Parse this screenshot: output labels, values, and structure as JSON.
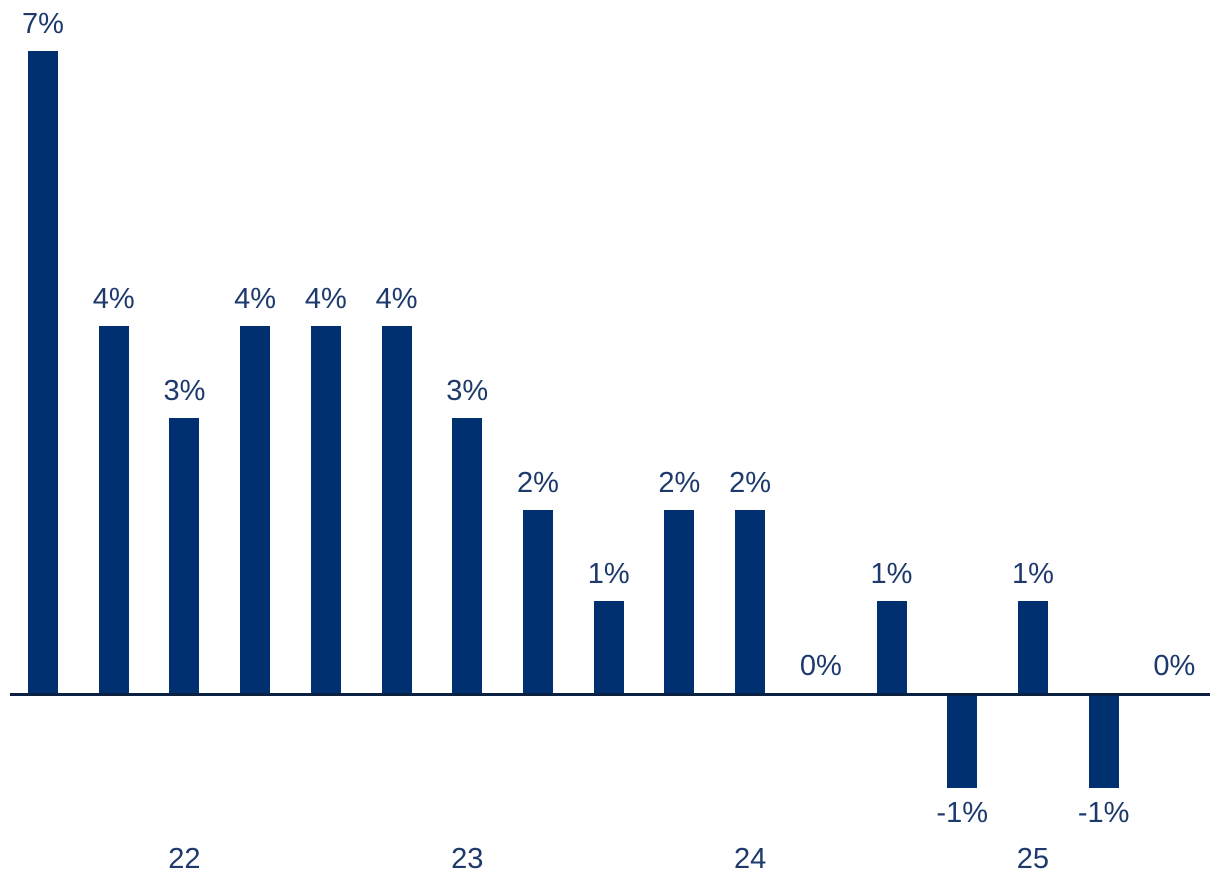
{
  "chart_data": {
    "type": "bar",
    "title": "",
    "xlabel": "",
    "ylabel": "",
    "unit": "percent",
    "baseline": 0,
    "ylim": [
      -1,
      7
    ],
    "grid": false,
    "legend": null,
    "points": [
      {
        "value": 7,
        "label": "7%"
      },
      {
        "value": 4,
        "label": "4%"
      },
      {
        "value": 3,
        "label": "3%"
      },
      {
        "value": 4,
        "label": "4%"
      },
      {
        "value": 4,
        "label": "4%"
      },
      {
        "value": 4,
        "label": "4%"
      },
      {
        "value": 3,
        "label": "3%"
      },
      {
        "value": 2,
        "label": "2%"
      },
      {
        "value": 1,
        "label": "1%"
      },
      {
        "value": 2,
        "label": "2%"
      },
      {
        "value": 2,
        "label": "2%"
      },
      {
        "value": 0,
        "label": "0%"
      },
      {
        "value": 1,
        "label": "1%"
      },
      {
        "value": -1,
        "label": "-1%"
      },
      {
        "value": 1,
        "label": "1%"
      },
      {
        "value": -1,
        "label": "-1%"
      },
      {
        "value": 0,
        "label": "0%"
      }
    ],
    "x_ticks": [
      {
        "label": "22",
        "index": 2
      },
      {
        "label": "23",
        "index": 6
      },
      {
        "label": "24",
        "index": 10
      },
      {
        "label": "25",
        "index": 14
      }
    ],
    "colors": {
      "bar": "#003070",
      "axis": "#0b2142",
      "label": "#1e3a6d"
    }
  }
}
